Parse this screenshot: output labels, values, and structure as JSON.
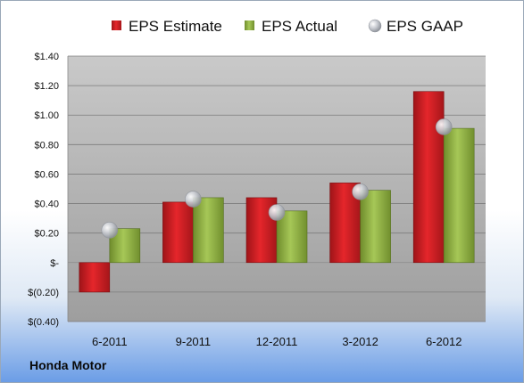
{
  "footer": {
    "company": "Honda Motor"
  },
  "chart_data": {
    "type": "bar",
    "categories": [
      "6-2011",
      "9-2011",
      "12-2011",
      "3-2012",
      "6-2012"
    ],
    "series": [
      {
        "name": "EPS Estimate",
        "kind": "bar",
        "color": "#cc1f24",
        "values": [
          -0.2,
          0.41,
          0.44,
          0.54,
          1.16
        ]
      },
      {
        "name": "EPS Actual",
        "kind": "bar",
        "color": "#8fb03f",
        "values": [
          0.23,
          0.44,
          0.35,
          0.49,
          0.91
        ]
      },
      {
        "name": "EPS GAAP",
        "kind": "marker",
        "color": "#b9bcc4",
        "values": [
          0.22,
          0.43,
          0.34,
          0.48,
          0.92
        ]
      }
    ],
    "ylim": [
      -0.4,
      1.4
    ],
    "yticks": [
      -0.4,
      -0.2,
      0,
      0.2,
      0.4,
      0.6,
      0.8,
      1.0,
      1.2,
      1.4
    ],
    "ytick_labels": [
      "$(0.40)",
      "$(0.20)",
      "$-",
      "$0.20",
      "$0.40",
      "$0.60",
      "$0.80",
      "$1.00",
      "$1.20",
      "$1.40"
    ],
    "legend_position": "top",
    "grid": true,
    "plot_background": "#a6a6a6"
  }
}
